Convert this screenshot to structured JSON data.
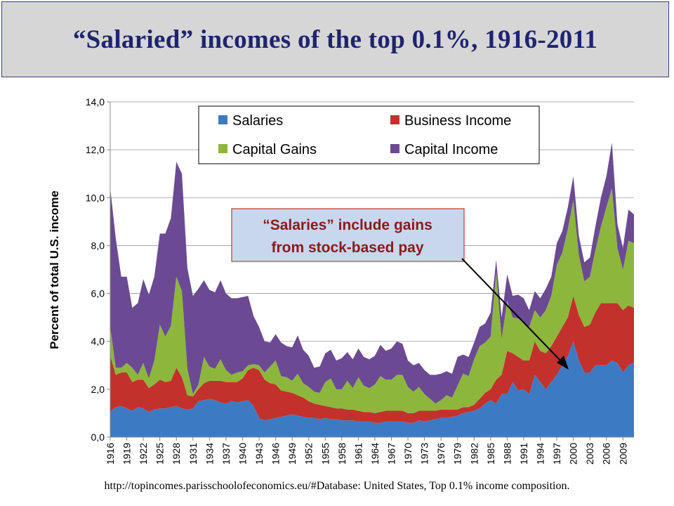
{
  "slide": {
    "title": "“Salaried” incomes of the top 0.1%, 1916-2011",
    "source": "http://topincomes.parisschoolofeconomics.eu/#Database:  United States, Top 0.1% income composition."
  },
  "annotation": {
    "line1": "“Salaries” include gains",
    "line2": "from stock-based pay"
  },
  "colors": {
    "salaries": "#3c7bc4",
    "business_income": "#c3312c",
    "capital_gains": "#8db63c",
    "capital_income": "#6b4a93",
    "title_text": "#1f2470",
    "title_bg": "#d6d6d6",
    "annotation_text": "#8b1a1a",
    "annotation_bg": "#c8d7ee"
  },
  "chart_data": {
    "type": "area",
    "stacked": true,
    "ylabel": "Percent of total U.S. income",
    "ylim": [
      0,
      14
    ],
    "yticks": [
      "0,0",
      "2,0",
      "4,0",
      "6,0",
      "8,0",
      "10,0",
      "12,0",
      "14,0"
    ],
    "xtick_labels": [
      "1916",
      "1919",
      "1922",
      "1925",
      "1928",
      "1931",
      "1934",
      "1937",
      "1940",
      "1943",
      "1946",
      "1949",
      "1952",
      "1955",
      "1958",
      "1961",
      "1964",
      "1967",
      "1970",
      "1973",
      "1976",
      "1979",
      "1982",
      "1985",
      "1988",
      "1991",
      "1994",
      "1997",
      "2000",
      "2003",
      "2006",
      "2009"
    ],
    "legend_position": "top-center",
    "grid": "horizontal",
    "x": [
      1916,
      1917,
      1918,
      1919,
      1920,
      1921,
      1922,
      1923,
      1924,
      1925,
      1926,
      1927,
      1928,
      1929,
      1930,
      1931,
      1932,
      1933,
      1934,
      1935,
      1936,
      1937,
      1938,
      1939,
      1940,
      1941,
      1942,
      1943,
      1944,
      1945,
      1946,
      1947,
      1948,
      1949,
      1950,
      1951,
      1952,
      1953,
      1954,
      1955,
      1956,
      1957,
      1958,
      1959,
      1960,
      1961,
      1962,
      1963,
      1964,
      1965,
      1966,
      1967,
      1968,
      1969,
      1970,
      1971,
      1972,
      1973,
      1974,
      1975,
      1976,
      1977,
      1978,
      1979,
      1980,
      1981,
      1982,
      1983,
      1984,
      1985,
      1986,
      1987,
      1988,
      1989,
      1990,
      1991,
      1992,
      1993,
      1994,
      1995,
      1996,
      1997,
      1998,
      1999,
      2000,
      2001,
      2002,
      2003,
      2004,
      2005,
      2006,
      2007,
      2008,
      2009,
      2010,
      2011
    ],
    "series": [
      {
        "name": "Salaries",
        "color": "#3c7bc4",
        "values": [
          1.05,
          1.25,
          1.3,
          1.2,
          1.1,
          1.25,
          1.2,
          1.05,
          1.15,
          1.2,
          1.2,
          1.25,
          1.3,
          1.2,
          1.15,
          1.2,
          1.5,
          1.55,
          1.6,
          1.55,
          1.45,
          1.4,
          1.5,
          1.45,
          1.5,
          1.55,
          1.3,
          0.8,
          0.7,
          0.75,
          0.8,
          0.85,
          0.9,
          0.95,
          0.9,
          0.85,
          0.8,
          0.8,
          0.75,
          0.8,
          0.75,
          0.75,
          0.7,
          0.7,
          0.7,
          0.65,
          0.65,
          0.65,
          0.6,
          0.6,
          0.65,
          0.65,
          0.65,
          0.65,
          0.6,
          0.6,
          0.7,
          0.65,
          0.7,
          0.75,
          0.8,
          0.8,
          0.85,
          0.9,
          1.0,
          1.05,
          1.1,
          1.2,
          1.4,
          1.55,
          1.4,
          1.8,
          1.8,
          2.3,
          1.95,
          2.0,
          1.8,
          2.6,
          2.3,
          2.0,
          2.3,
          2.6,
          3.0,
          3.4,
          4.0,
          3.2,
          2.7,
          2.7,
          3.0,
          3.0,
          3.0,
          3.2,
          3.1,
          2.7,
          3.0,
          3.1
        ]
      },
      {
        "name": "Business Income",
        "color": "#c3312c",
        "values": [
          2.35,
          1.35,
          1.4,
          1.5,
          1.2,
          1.15,
          1.2,
          1.0,
          1.05,
          1.2,
          1.1,
          1.1,
          1.6,
          1.3,
          0.6,
          0.5,
          0.5,
          0.7,
          0.75,
          0.8,
          0.9,
          0.9,
          0.8,
          0.85,
          0.95,
          1.25,
          1.6,
          2.0,
          1.7,
          1.5,
          1.4,
          1.1,
          1.0,
          0.9,
          0.85,
          0.8,
          0.7,
          0.6,
          0.6,
          0.5,
          0.5,
          0.45,
          0.5,
          0.45,
          0.45,
          0.45,
          0.4,
          0.4,
          0.4,
          0.45,
          0.45,
          0.45,
          0.45,
          0.45,
          0.4,
          0.4,
          0.4,
          0.45,
          0.4,
          0.35,
          0.35,
          0.35,
          0.3,
          0.25,
          0.25,
          0.2,
          0.25,
          0.4,
          0.45,
          0.45,
          1.0,
          0.8,
          1.8,
          1.2,
          1.4,
          1.2,
          1.4,
          1.4,
          1.3,
          1.5,
          1.5,
          1.6,
          1.6,
          1.6,
          1.9,
          1.9,
          1.9,
          2.0,
          2.2,
          2.6,
          2.6,
          2.4,
          2.5,
          2.6,
          2.5,
          2.3
        ]
      },
      {
        "name": "Capital Gains",
        "color": "#8db63c",
        "values": [
          1.2,
          0.3,
          0.2,
          0.4,
          0.6,
          0.2,
          0.7,
          0.4,
          1.0,
          2.3,
          1.9,
          2.3,
          3.8,
          3.6,
          1.1,
          0.1,
          0.2,
          1.1,
          0.6,
          0.5,
          0.9,
          0.5,
          0.3,
          0.4,
          0.3,
          0.2,
          0.15,
          0.2,
          0.3,
          0.7,
          1.0,
          0.6,
          0.6,
          0.5,
          0.9,
          0.6,
          0.6,
          0.5,
          0.5,
          1.0,
          1.2,
          0.8,
          0.8,
          1.2,
          0.9,
          1.4,
          1.1,
          1.0,
          1.2,
          1.5,
          1.3,
          1.3,
          1.5,
          1.5,
          1.1,
          0.9,
          1.0,
          0.7,
          0.5,
          0.3,
          0.4,
          0.6,
          0.5,
          1.0,
          1.4,
          1.3,
          1.9,
          2.2,
          2.1,
          2.2,
          4.5,
          1.5,
          2.1,
          1.5,
          1.6,
          1.6,
          1.4,
          1.3,
          1.4,
          1.8,
          2.1,
          3.0,
          3.1,
          3.7,
          4.0,
          2.5,
          1.9,
          2.0,
          2.6,
          3.2,
          4.0,
          4.8,
          2.3,
          1.7,
          2.7,
          2.7
        ]
      },
      {
        "name": "Capital Income",
        "color": "#6b4a93",
        "values": [
          5.8,
          5.4,
          3.8,
          3.6,
          2.5,
          3.0,
          3.5,
          3.5,
          3.5,
          3.8,
          4.3,
          4.5,
          4.8,
          4.9,
          4.2,
          4.1,
          4.0,
          3.2,
          3.2,
          3.2,
          3.3,
          3.2,
          3.2,
          3.1,
          3.1,
          2.9,
          2.0,
          1.6,
          1.3,
          1.0,
          1.1,
          1.4,
          1.3,
          1.4,
          1.6,
          1.4,
          1.3,
          1.0,
          1.1,
          1.2,
          1.2,
          1.2,
          1.3,
          1.2,
          1.2,
          1.2,
          1.2,
          1.2,
          1.2,
          1.3,
          1.2,
          1.3,
          1.4,
          1.3,
          1.1,
          1.1,
          1.0,
          1.0,
          1.0,
          1.2,
          1.1,
          1.0,
          1.0,
          1.2,
          0.8,
          0.8,
          0.7,
          0.8,
          0.8,
          1.0,
          0.5,
          0.9,
          1.1,
          0.9,
          1.0,
          1.0,
          0.7,
          0.8,
          0.8,
          0.9,
          0.8,
          0.9,
          0.9,
          0.9,
          1.0,
          0.8,
          0.8,
          0.8,
          1.0,
          1.2,
          1.3,
          1.9,
          1.0,
          0.9,
          1.3,
          1.2
        ]
      }
    ]
  }
}
